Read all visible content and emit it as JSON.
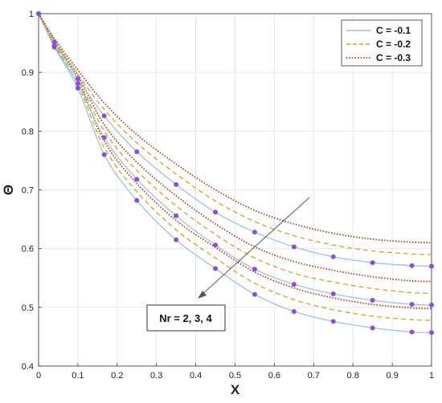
{
  "chart_data": {
    "type": "line",
    "xlabel": "X",
    "ylabel": "Θ",
    "xlim": [
      0,
      1
    ],
    "ylim": [
      0.4,
      1
    ],
    "xticks": [
      "0",
      "0.1",
      "0.2",
      "0.3",
      "0.4",
      "0.5",
      "0.6",
      "0.7",
      "0.8",
      "0.9",
      "1"
    ],
    "yticks": [
      "0.4",
      "0.5",
      "0.6",
      "0.7",
      "0.8",
      "0.9",
      "1"
    ],
    "grid": true,
    "legend_position": "top-right",
    "legend": [
      {
        "label": "C = -0.1",
        "style": "solid",
        "color": "#9fc2d8"
      },
      {
        "label": "C = -0.2",
        "style": "dashed",
        "color": "#c8a628"
      },
      {
        "label": "C = -0.3",
        "style": "dotted",
        "color": "#a8401a"
      }
    ],
    "annotation": "Nr = 2, 3, 4",
    "marker_color": "#8a4fd6",
    "series": [
      {
        "values": [
          1,
          0.943,
          0.873,
          0.76,
          0.682,
          0.615,
          0.566,
          0.522,
          0.493,
          0.476,
          0.465,
          0.458,
          0.457
        ],
        "x": [
          0,
          0.04,
          0.1,
          0.167,
          0.25,
          0.35,
          0.45,
          0.55,
          0.65,
          0.75,
          0.85,
          0.95,
          1.0
        ]
      },
      {
        "values": [
          1,
          0.947,
          0.88,
          0.772,
          0.697,
          0.632,
          0.584,
          0.541,
          0.513,
          0.496,
          0.485,
          0.479,
          0.478
        ],
        "x": [
          0,
          0.04,
          0.1,
          0.167,
          0.25,
          0.35,
          0.45,
          0.55,
          0.65,
          0.75,
          0.85,
          0.95,
          1.0
        ]
      },
      {
        "values": [
          1,
          0.951,
          0.888,
          0.783,
          0.711,
          0.648,
          0.602,
          0.56,
          0.533,
          0.516,
          0.505,
          0.499,
          0.498
        ],
        "x": [
          0,
          0.04,
          0.1,
          0.167,
          0.25,
          0.35,
          0.45,
          0.55,
          0.65,
          0.75,
          0.85,
          0.95,
          1.0
        ]
      },
      {
        "values": [
          1,
          0.945,
          0.881,
          0.789,
          0.718,
          0.656,
          0.606,
          0.565,
          0.539,
          0.523,
          0.512,
          0.505,
          0.504
        ],
        "x": [
          0,
          0.04,
          0.1,
          0.167,
          0.25,
          0.35,
          0.45,
          0.55,
          0.65,
          0.75,
          0.85,
          0.95,
          1.0
        ]
      },
      {
        "values": [
          1,
          0.949,
          0.888,
          0.8,
          0.733,
          0.673,
          0.624,
          0.584,
          0.558,
          0.543,
          0.532,
          0.525,
          0.524
        ],
        "x": [
          0,
          0.04,
          0.1,
          0.167,
          0.25,
          0.35,
          0.45,
          0.55,
          0.65,
          0.75,
          0.85,
          0.95,
          1.0
        ]
      },
      {
        "values": [
          1,
          0.953,
          0.895,
          0.811,
          0.747,
          0.69,
          0.642,
          0.603,
          0.578,
          0.563,
          0.552,
          0.545,
          0.544
        ],
        "x": [
          0,
          0.04,
          0.1,
          0.167,
          0.25,
          0.35,
          0.45,
          0.55,
          0.65,
          0.75,
          0.85,
          0.95,
          1.0
        ]
      },
      {
        "values": [
          1,
          0.952,
          0.889,
          0.826,
          0.765,
          0.709,
          0.662,
          0.628,
          0.603,
          0.586,
          0.576,
          0.571,
          0.57
        ],
        "x": [
          0,
          0.04,
          0.1,
          0.167,
          0.25,
          0.35,
          0.45,
          0.55,
          0.65,
          0.75,
          0.85,
          0.95,
          1.0
        ]
      },
      {
        "values": [
          1,
          0.955,
          0.897,
          0.837,
          0.78,
          0.727,
          0.681,
          0.646,
          0.622,
          0.606,
          0.596,
          0.591,
          0.59
        ],
        "x": [
          0,
          0.04,
          0.1,
          0.167,
          0.25,
          0.35,
          0.45,
          0.55,
          0.65,
          0.75,
          0.85,
          0.95,
          1.0
        ]
      },
      {
        "values": [
          1,
          0.958,
          0.904,
          0.848,
          0.794,
          0.744,
          0.7,
          0.665,
          0.642,
          0.626,
          0.616,
          0.611,
          0.61
        ],
        "x": [
          0,
          0.04,
          0.1,
          0.167,
          0.25,
          0.35,
          0.45,
          0.55,
          0.65,
          0.75,
          0.85,
          0.95,
          1.0
        ]
      }
    ],
    "series_meta": [
      {
        "C": "-0.1",
        "Nr": "2",
        "style": "solid",
        "color": "#9fc2d8",
        "markers": true
      },
      {
        "C": "-0.2",
        "Nr": "2",
        "style": "dashed",
        "color": "#c8a628",
        "markers": false
      },
      {
        "C": "-0.3",
        "Nr": "2",
        "style": "dotted",
        "color": "#a8401a",
        "markers": false
      },
      {
        "C": "-0.1",
        "Nr": "3",
        "style": "solid",
        "color": "#9fc2d8",
        "markers": true
      },
      {
        "C": "-0.2",
        "Nr": "3",
        "style": "dashed",
        "color": "#c8a628",
        "markers": false
      },
      {
        "C": "-0.3",
        "Nr": "3",
        "style": "dotted",
        "color": "#a8401a",
        "markers": false
      },
      {
        "C": "-0.1",
        "Nr": "4",
        "style": "solid",
        "color": "#9fc2d8",
        "markers": true
      },
      {
        "C": "-0.2",
        "Nr": "4",
        "style": "dashed",
        "color": "#c8a628",
        "markers": false
      },
      {
        "C": "-0.3",
        "Nr": "4",
        "style": "dotted",
        "color": "#a8401a",
        "markers": false
      }
    ]
  }
}
